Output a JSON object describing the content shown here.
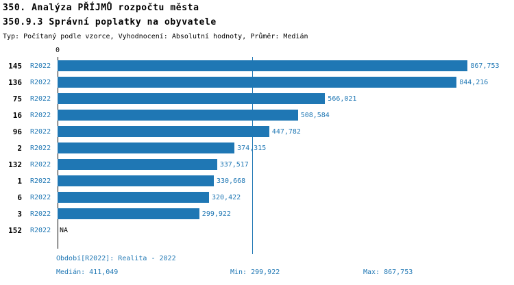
{
  "header": {
    "title": "350. Analýza PŘÍJMŮ rozpočtu města",
    "subtitle": "350.9.3 Správní poplatky na obyvatele",
    "meta": "Typ: Počítaný podle vzorce, Vyhodnocení: Absolutní hodnoty, Průměr: Medián"
  },
  "chart_data": {
    "type": "bar",
    "orientation": "horizontal",
    "title": "350.9.3 Správní poplatky na obyvatele",
    "series_label": "R2022",
    "axis_zero_label": "0",
    "categories": [
      "145",
      "136",
      "75",
      "16",
      "96",
      "2",
      "132",
      "1",
      "6",
      "3",
      "152"
    ],
    "values": [
      867753,
      844216,
      566021,
      508584,
      447782,
      374315,
      337517,
      330668,
      320422,
      299922,
      null
    ],
    "value_labels": [
      "867,753",
      "844,216",
      "566,021",
      "508,584",
      "447,782",
      "374,315",
      "337,517",
      "330,668",
      "320,422",
      "299,922",
      "NA"
    ],
    "median": 411049,
    "min": 299922,
    "max": 867753,
    "xlim": [
      0,
      960000
    ],
    "grid": false,
    "legend": "none"
  },
  "footer": {
    "period": "Období[R2022]: Realita - 2022",
    "median": "Medián: 411,049",
    "min": "Min: 299,922",
    "max": "Max: 867,753"
  },
  "colors": {
    "accent": "#1f77b4",
    "bar": "#1f77b4",
    "axis": "#000000",
    "background": "#ffffff"
  }
}
